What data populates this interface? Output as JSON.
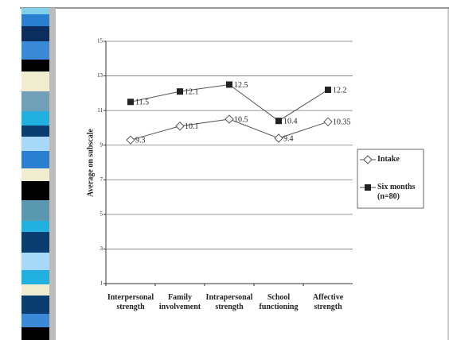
{
  "chart_data": {
    "type": "line",
    "y_axis_label": "Average on subscale",
    "categories": [
      "Interpersonal strength",
      "Family involvement",
      "Intrapersonal strength",
      "School functioning",
      "Affective strength"
    ],
    "series": [
      {
        "name": "Intake",
        "color": "#555555",
        "marker": "diamond-open",
        "values": [
          9.3,
          10.1,
          10.5,
          9.4,
          10.35
        ]
      },
      {
        "name": "Six months (n=80)",
        "color": "#555555",
        "marker": "square-filled",
        "values": [
          11.5,
          12.1,
          12.5,
          10.4,
          12.2
        ]
      }
    ],
    "ylim": [
      1,
      15
    ],
    "yticks": [
      1,
      3,
      5,
      7,
      9,
      11,
      13,
      15
    ],
    "grid": true,
    "legend": "right"
  }
}
